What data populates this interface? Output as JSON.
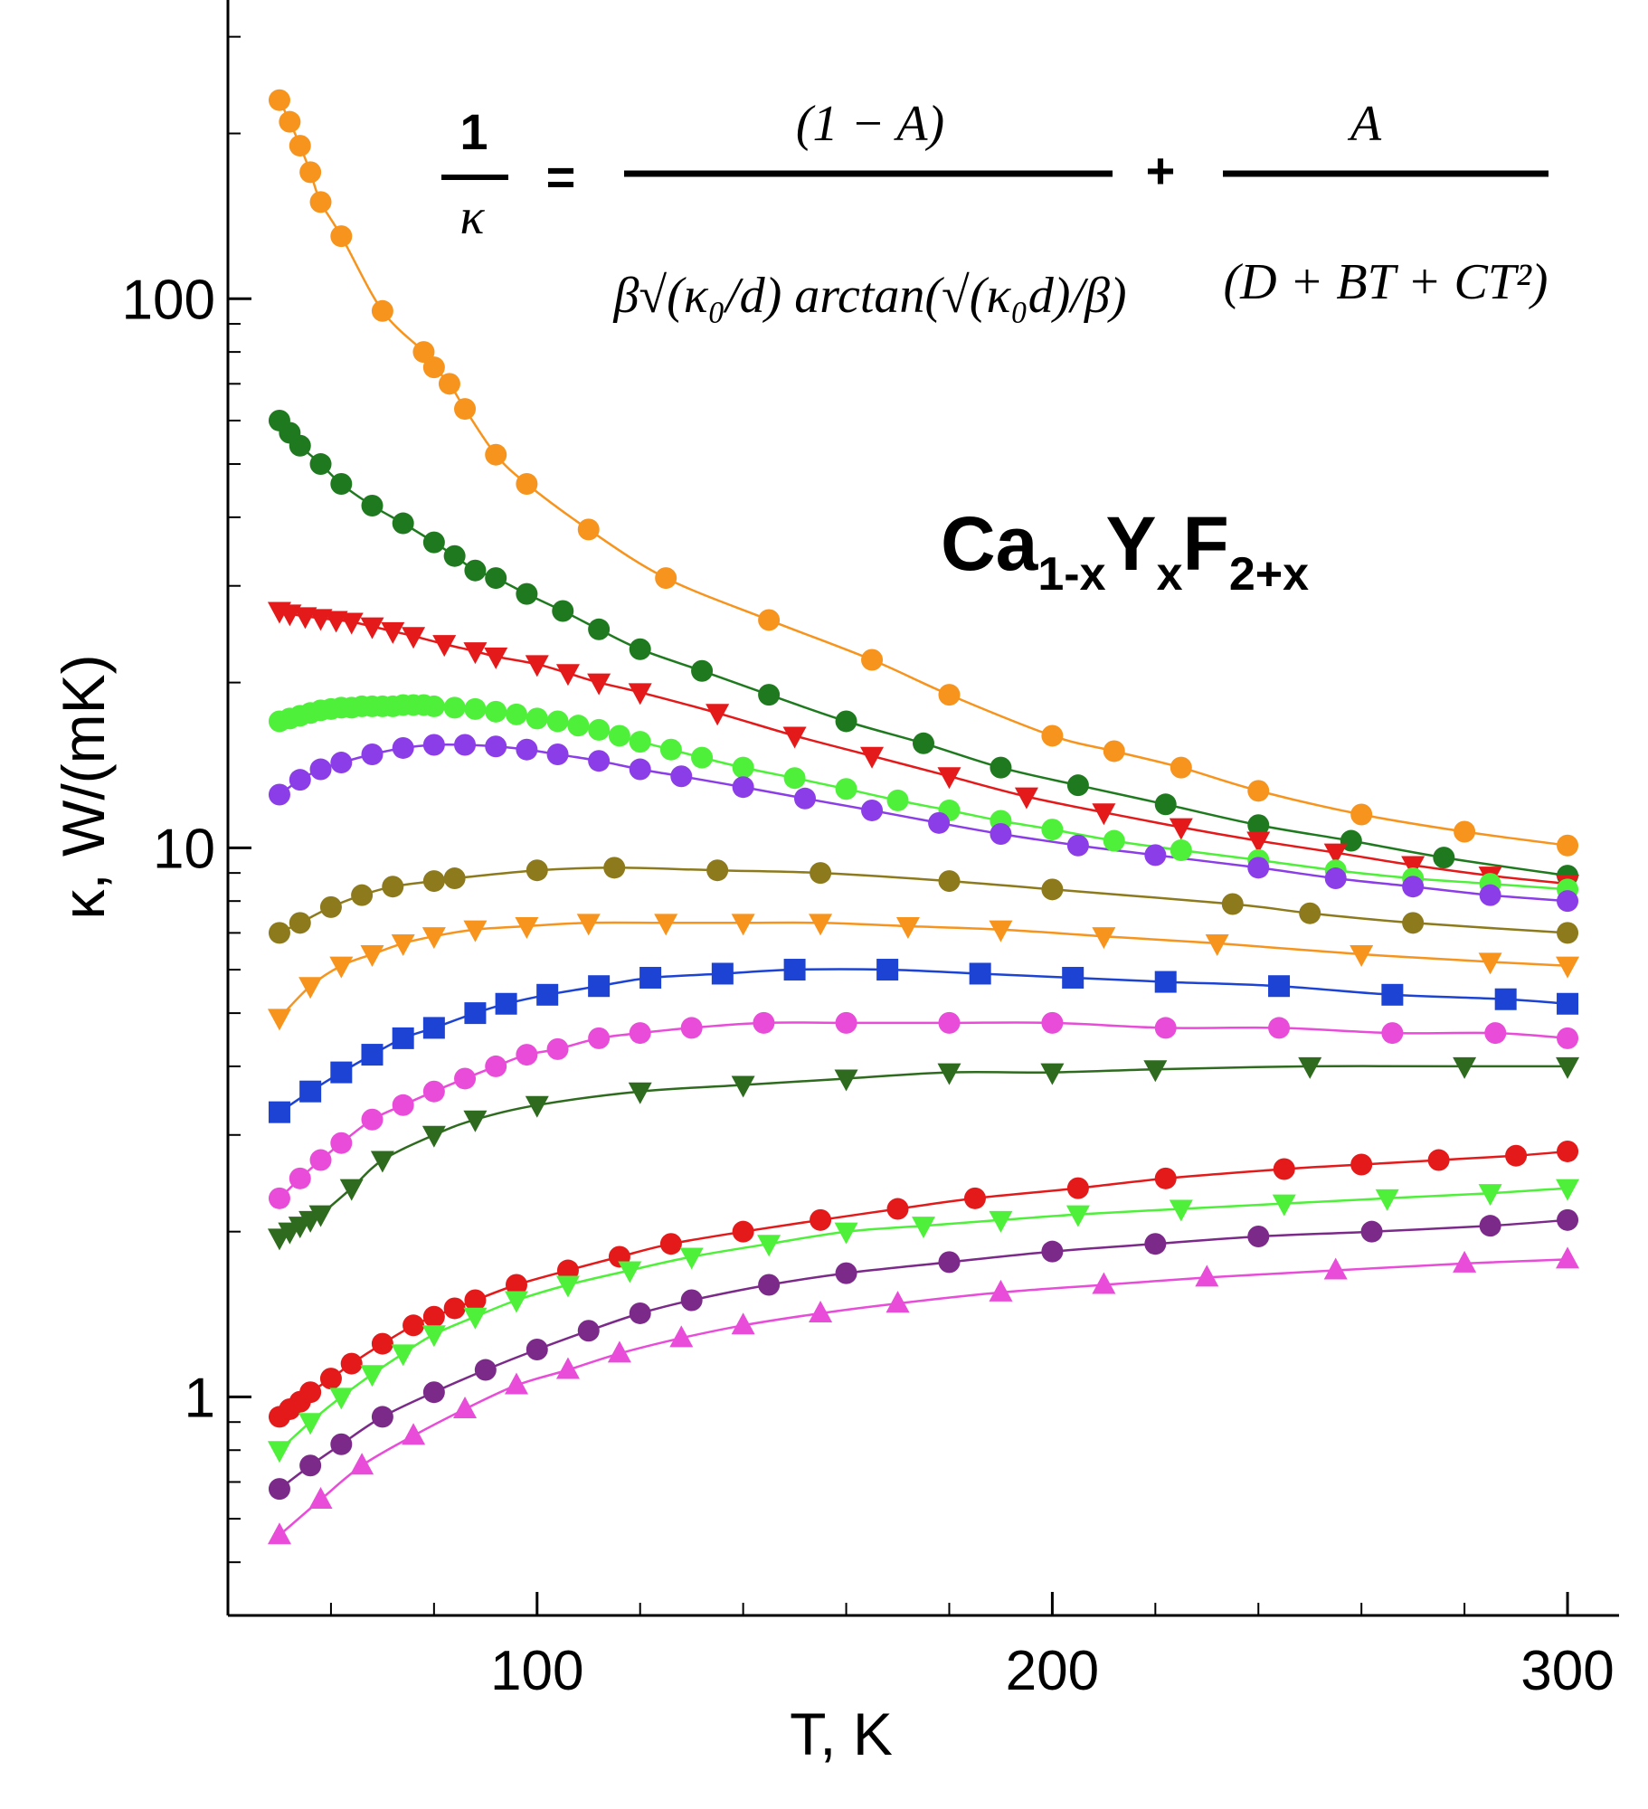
{
  "chart_data": {
    "type": "scatter",
    "title": "",
    "xlabel": "T, K",
    "ylabel": "κ, W/(mK)",
    "xlim": [
      40,
      310
    ],
    "ylim": [
      0.4,
      350
    ],
    "y_scale": "log",
    "x_ticks": [
      100,
      200,
      300
    ],
    "x_tick_labels": [
      "100",
      "200",
      "300"
    ],
    "y_ticks": [
      1,
      10,
      100
    ],
    "y_tick_labels": [
      "1",
      "10",
      "100"
    ],
    "grid": false,
    "legend": "none",
    "annotation": {
      "compound": {
        "base1": "Ca",
        "sub1": "1-x",
        "base2": "Y",
        "sub2": "x",
        "base3": "F",
        "sub3": "2+x"
      },
      "equation": {
        "lhs_num": "1",
        "lhs_den": "κ",
        "eq_sign": "=",
        "t1_num": "(1 − A)",
        "t1_den": "β√(κ₀/d) arctan(√(κ₀d)/β)",
        "plus": "+",
        "t2_num": "A",
        "t2_den": "(D + BT + CT²)"
      }
    },
    "series": [
      {
        "color": "#f7941d",
        "marker": "circle",
        "x": [
          50,
          52,
          54,
          56,
          58,
          62,
          70,
          78,
          80,
          83,
          86,
          92,
          98,
          110,
          125,
          145,
          165,
          180,
          200,
          212,
          225,
          240,
          260,
          280,
          300
        ],
        "y": [
          230,
          210,
          190,
          170,
          150,
          130,
          95,
          80,
          75,
          70,
          63,
          52,
          46,
          38,
          31,
          26,
          22,
          19,
          16,
          15,
          14,
          12.7,
          11.5,
          10.7,
          10.1
        ]
      },
      {
        "color": "#1f7a1f",
        "marker": "circle",
        "x": [
          50,
          52,
          54,
          58,
          62,
          68,
          74,
          80,
          84,
          88,
          92,
          98,
          105,
          112,
          120,
          132,
          145,
          160,
          175,
          190,
          205,
          222,
          240,
          258,
          276,
          300
        ],
        "y": [
          60,
          57,
          54,
          50,
          46,
          42,
          39,
          36,
          34,
          32,
          31,
          29,
          27,
          25,
          23,
          21,
          19,
          17,
          15.5,
          14,
          13,
          12,
          11,
          10.3,
          9.6,
          8.9
        ]
      },
      {
        "color": "#e4191a",
        "marker": "triangle-down",
        "x": [
          50,
          52,
          55,
          58,
          61,
          64,
          68,
          72,
          76,
          82,
          88,
          92,
          100,
          106,
          112,
          120,
          135,
          150,
          165,
          180,
          195,
          210,
          225,
          240,
          255,
          270,
          285,
          300
        ],
        "y": [
          27,
          26.7,
          26.4,
          26.2,
          26,
          25.8,
          25.3,
          24.8,
          24.3,
          23.5,
          22.8,
          22.3,
          21.6,
          20.8,
          20,
          19.2,
          17.6,
          16,
          14.7,
          13.5,
          12.4,
          11.6,
          10.9,
          10.3,
          9.8,
          9.3,
          8.9,
          8.6
        ]
      },
      {
        "color": "#4ef03a",
        "marker": "circle",
        "x": [
          50,
          52,
          54,
          56,
          58,
          60,
          62,
          64,
          66,
          68,
          70,
          72,
          74,
          76,
          78,
          80,
          84,
          88,
          92,
          96,
          100,
          104,
          108,
          112,
          116,
          120,
          126,
          132,
          140,
          150,
          160,
          170,
          180,
          190,
          200,
          212,
          225,
          240,
          255,
          270,
          285,
          300
        ],
        "y": [
          17,
          17.2,
          17.4,
          17.6,
          17.8,
          17.9,
          18,
          18,
          18.1,
          18.1,
          18.1,
          18.1,
          18.2,
          18.2,
          18.2,
          18.1,
          18,
          17.9,
          17.7,
          17.5,
          17.2,
          17,
          16.7,
          16.4,
          16,
          15.6,
          15.1,
          14.6,
          14,
          13.4,
          12.8,
          12.2,
          11.7,
          11.2,
          10.8,
          10.3,
          9.9,
          9.5,
          9.1,
          8.8,
          8.6,
          8.4
        ]
      },
      {
        "color": "#8b3de8",
        "marker": "circle",
        "x": [
          50,
          54,
          58,
          62,
          68,
          74,
          80,
          86,
          92,
          98,
          104,
          112,
          120,
          128,
          140,
          152,
          165,
          178,
          190,
          205,
          220,
          240,
          255,
          270,
          285,
          300
        ],
        "y": [
          12.5,
          13.3,
          13.9,
          14.3,
          14.8,
          15.2,
          15.4,
          15.4,
          15.3,
          15.1,
          14.8,
          14.4,
          13.9,
          13.5,
          12.9,
          12.3,
          11.7,
          11.1,
          10.6,
          10.1,
          9.7,
          9.2,
          8.8,
          8.5,
          8.2,
          8
        ]
      },
      {
        "color": "#8c7a1c",
        "marker": "circle",
        "x": [
          50,
          54,
          60,
          66,
          72,
          80,
          84,
          100,
          115,
          135,
          155,
          180,
          200,
          235,
          250,
          270,
          300
        ],
        "y": [
          7,
          7.3,
          7.8,
          8.2,
          8.5,
          8.7,
          8.8,
          9.1,
          9.2,
          9.1,
          9,
          8.7,
          8.4,
          7.9,
          7.6,
          7.3,
          7
        ]
      },
      {
        "color": "#f7941d",
        "marker": "triangle-down",
        "x": [
          50,
          56,
          62,
          68,
          74,
          80,
          88,
          98,
          110,
          125,
          140,
          155,
          172,
          190,
          210,
          232,
          260,
          285,
          300
        ],
        "y": [
          4.9,
          5.6,
          6.1,
          6.4,
          6.7,
          6.9,
          7.1,
          7.2,
          7.3,
          7.3,
          7.3,
          7.3,
          7.2,
          7.1,
          6.9,
          6.7,
          6.4,
          6.2,
          6.1
        ]
      },
      {
        "color": "#1c43d4",
        "marker": "square",
        "x": [
          50,
          56,
          62,
          68,
          74,
          80,
          88,
          94,
          102,
          112,
          122,
          136,
          150,
          168,
          186,
          204,
          222,
          244,
          266,
          288,
          300
        ],
        "y": [
          3.3,
          3.6,
          3.9,
          4.2,
          4.5,
          4.7,
          5,
          5.2,
          5.4,
          5.6,
          5.8,
          5.9,
          6,
          6,
          5.9,
          5.8,
          5.7,
          5.6,
          5.4,
          5.3,
          5.2
        ]
      },
      {
        "color": "#e84cd8",
        "marker": "circle",
        "x": [
          50,
          54,
          58,
          62,
          68,
          74,
          80,
          86,
          92,
          98,
          104,
          112,
          120,
          130,
          144,
          160,
          180,
          200,
          222,
          244,
          266,
          286,
          300
        ],
        "y": [
          2.3,
          2.5,
          2.7,
          2.9,
          3.2,
          3.4,
          3.6,
          3.8,
          4,
          4.2,
          4.3,
          4.5,
          4.6,
          4.7,
          4.8,
          4.8,
          4.8,
          4.8,
          4.7,
          4.7,
          4.6,
          4.6,
          4.5
        ]
      },
      {
        "color": "#2e6b1e",
        "marker": "triangle-down",
        "x": [
          50,
          52,
          54,
          56,
          58,
          64,
          70,
          80,
          88,
          100,
          120,
          140,
          160,
          180,
          200,
          220,
          250,
          280,
          300
        ],
        "y": [
          1.95,
          2,
          2.05,
          2.1,
          2.15,
          2.4,
          2.7,
          3,
          3.2,
          3.4,
          3.6,
          3.7,
          3.8,
          3.9,
          3.9,
          3.95,
          4,
          4,
          4
        ]
      },
      {
        "color": "#e4191a",
        "marker": "circle",
        "x": [
          50,
          52,
          54,
          56,
          60,
          64,
          70,
          76,
          80,
          84,
          88,
          96,
          106,
          116,
          126,
          140,
          155,
          170,
          185,
          205,
          222,
          245,
          260,
          275,
          290,
          300
        ],
        "y": [
          0.92,
          0.95,
          0.98,
          1.02,
          1.08,
          1.15,
          1.25,
          1.35,
          1.4,
          1.45,
          1.5,
          1.6,
          1.7,
          1.8,
          1.9,
          2,
          2.1,
          2.2,
          2.3,
          2.4,
          2.5,
          2.6,
          2.65,
          2.7,
          2.75,
          2.8
        ]
      },
      {
        "color": "#4ef03a",
        "marker": "triangle-down",
        "x": [
          50,
          56,
          62,
          68,
          74,
          80,
          88,
          96,
          106,
          118,
          130,
          145,
          160,
          175,
          190,
          205,
          225,
          245,
          265,
          285,
          300
        ],
        "y": [
          0.8,
          0.9,
          1,
          1.1,
          1.2,
          1.3,
          1.4,
          1.5,
          1.6,
          1.7,
          1.8,
          1.9,
          2,
          2.05,
          2.1,
          2.15,
          2.2,
          2.25,
          2.3,
          2.35,
          2.4
        ]
      },
      {
        "color": "#7b2a8a",
        "marker": "circle",
        "x": [
          50,
          56,
          62,
          70,
          80,
          90,
          100,
          110,
          120,
          130,
          145,
          160,
          180,
          200,
          220,
          240,
          262,
          285,
          300
        ],
        "y": [
          0.68,
          0.75,
          0.82,
          0.92,
          1.02,
          1.12,
          1.22,
          1.32,
          1.42,
          1.5,
          1.6,
          1.68,
          1.76,
          1.84,
          1.9,
          1.96,
          2,
          2.05,
          2.1
        ]
      },
      {
        "color": "#e84cd8",
        "marker": "triangle-up",
        "x": [
          50,
          58,
          66,
          76,
          86,
          96,
          106,
          116,
          128,
          140,
          155,
          170,
          190,
          210,
          230,
          255,
          280,
          300
        ],
        "y": [
          0.56,
          0.65,
          0.75,
          0.85,
          0.95,
          1.05,
          1.12,
          1.2,
          1.28,
          1.35,
          1.42,
          1.48,
          1.55,
          1.6,
          1.65,
          1.7,
          1.75,
          1.78
        ]
      }
    ]
  }
}
